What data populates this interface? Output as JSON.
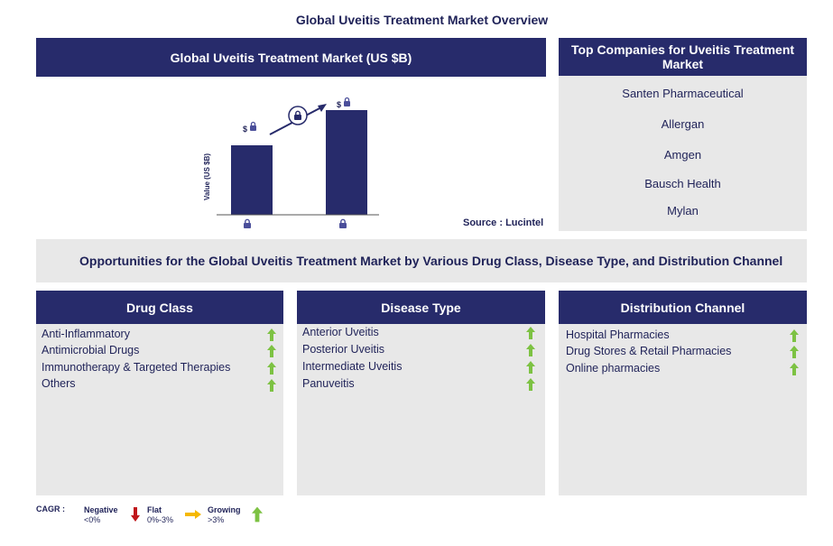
{
  "page_title": "Global Uveitis Treatment Market Overview",
  "chart_panel": {
    "title": "Global Uveitis Treatment Market (US $B)",
    "ylabel": "Value (US $B)",
    "source": "Source : Lucintel",
    "bar_value_label": "$",
    "bar_heights_relative": [
      0.66,
      1.0
    ]
  },
  "companies": {
    "title": "Top Companies for Uveitis Treatment Market",
    "items": [
      "Santen Pharmaceutical",
      "Allergan",
      "Amgen",
      "Bausch Health",
      "Mylan"
    ]
  },
  "opportunities_title": "Opportunities for the Global Uveitis Treatment Market by Various Drug Class, Disease Type, and Distribution Channel",
  "segments": [
    {
      "title": "Drug Class",
      "items": [
        "Anti-Inflammatory",
        "Antimicrobial Drugs",
        "Immunotherapy & Targeted Therapies",
        "Others"
      ],
      "trend": [
        "growing",
        "growing",
        "growing",
        "growing"
      ]
    },
    {
      "title": "Disease Type",
      "items": [
        "Anterior Uveitis",
        "Posterior Uveitis",
        "Intermediate Uveitis",
        "Panuveitis"
      ],
      "trend": [
        "growing",
        "growing",
        "growing",
        "growing"
      ]
    },
    {
      "title": "Distribution Channel",
      "items": [
        "Hospital Pharmacies",
        "Drug Stores & Retail Pharmacies",
        "Online pharmacies"
      ],
      "trend": [
        "growing",
        "growing",
        "growing"
      ]
    }
  ],
  "legend": {
    "label": "CAGR :",
    "negative": "Negative",
    "negative_range": "<0%",
    "flat": "Flat",
    "flat_range": "0%-3%",
    "growing": "Growing",
    "growing_range": ">3%"
  },
  "colors": {
    "navy": "#272b6b",
    "panel_gray": "#e8e8e8",
    "growing": "#7dc243",
    "negative": "#c0161b",
    "flat": "#f5b800"
  }
}
